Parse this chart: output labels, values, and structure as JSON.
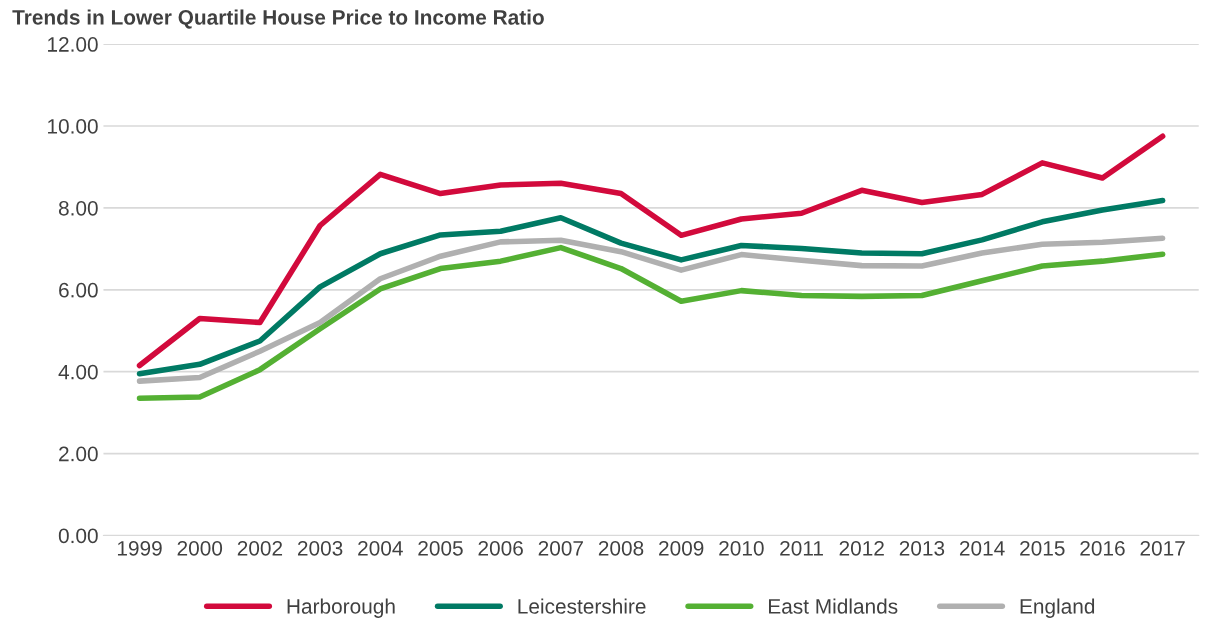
{
  "chart_data": {
    "type": "line",
    "title": "Trends in Lower Quartile House Price to Income Ratio",
    "categories": [
      "1999",
      "2000",
      "2002",
      "2003",
      "2004",
      "2005",
      "2006",
      "2007",
      "2008",
      "2009",
      "2010",
      "2011",
      "2012",
      "2013",
      "2014",
      "2015",
      "2016",
      "2017"
    ],
    "series": [
      {
        "name": "Harborough",
        "color": "#d20a3c",
        "values": [
          4.15,
          5.3,
          5.2,
          7.57,
          8.82,
          8.35,
          8.56,
          8.6,
          8.35,
          7.33,
          7.73,
          7.87,
          8.43,
          8.13,
          8.33,
          9.1,
          8.73,
          9.75
        ]
      },
      {
        "name": "Leicestershire",
        "color": "#007a64",
        "values": [
          3.95,
          4.18,
          4.75,
          6.07,
          6.88,
          7.34,
          7.43,
          7.76,
          7.14,
          6.73,
          7.08,
          7.01,
          6.9,
          6.88,
          7.22,
          7.66,
          7.95,
          8.18
        ]
      },
      {
        "name": "East Midlands",
        "color": "#54b033",
        "values": [
          3.35,
          3.38,
          4.05,
          5.05,
          6.02,
          6.52,
          6.7,
          7.03,
          6.52,
          5.72,
          5.98,
          5.86,
          5.84,
          5.86,
          6.22,
          6.58,
          6.7,
          6.87
        ]
      },
      {
        "name": "England",
        "color": "#b0b0b0",
        "values": [
          3.77,
          3.86,
          4.5,
          5.2,
          6.27,
          6.82,
          7.17,
          7.21,
          6.93,
          6.48,
          6.86,
          6.72,
          6.59,
          6.58,
          6.9,
          7.11,
          7.16,
          7.26
        ]
      }
    ],
    "ylim": [
      0,
      12
    ],
    "yticks": [
      {
        "value": 0,
        "label": "0.00"
      },
      {
        "value": 2,
        "label": "2.00"
      },
      {
        "value": 4,
        "label": "4.00"
      },
      {
        "value": 6,
        "label": "6.00"
      },
      {
        "value": 8,
        "label": "8.00"
      },
      {
        "value": 10,
        "label": "10.00"
      },
      {
        "value": 12,
        "label": "12.00"
      }
    ],
    "grid": "y",
    "legend": "bottom",
    "marker": "none",
    "line_style": "solid"
  }
}
